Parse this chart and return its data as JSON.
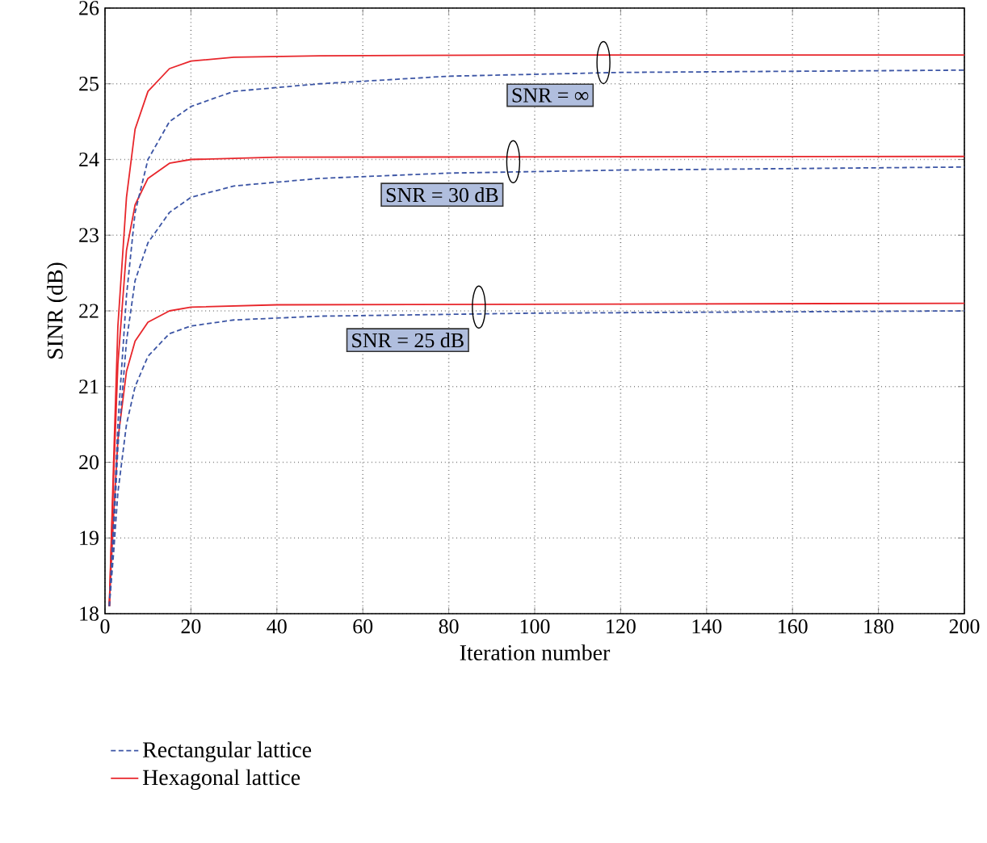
{
  "chart_data": {
    "type": "line",
    "xlabel": "Iteration number",
    "ylabel": "SINR (dB)",
    "xlim": [
      0,
      200
    ],
    "ylim": [
      18,
      26
    ],
    "xticks": [
      0,
      20,
      40,
      60,
      80,
      100,
      120,
      140,
      160,
      180,
      200
    ],
    "yticks": [
      18,
      19,
      20,
      21,
      22,
      23,
      24,
      25,
      26
    ],
    "grid": true,
    "legend": "bottom",
    "marker": "none",
    "series": [
      {
        "name": "Rectangular lattice",
        "color": "#3c55a5",
        "line_style": "dashed",
        "x": [
          1,
          2,
          3,
          5,
          7,
          10,
          15,
          20,
          30,
          50,
          80,
          120,
          200
        ],
        "values": [
          18.1,
          19.2,
          20.5,
          22.2,
          23.3,
          24.0,
          24.5,
          24.7,
          24.9,
          25.0,
          25.1,
          25.15,
          25.18
        ]
      },
      {
        "name": "Hexagonal lattice",
        "color": "#e8262b",
        "line_style": "solid",
        "x": [
          1,
          2,
          3,
          5,
          7,
          10,
          15,
          20,
          30,
          50,
          100,
          200
        ],
        "values": [
          18.1,
          20.0,
          21.8,
          23.5,
          24.4,
          24.9,
          25.2,
          25.3,
          25.35,
          25.37,
          25.38,
          25.38
        ]
      },
      {
        "color": "#3c55a5",
        "line_style": "dashed",
        "x": [
          1,
          2,
          3,
          5,
          7,
          10,
          15,
          20,
          30,
          50,
          80,
          120,
          200
        ],
        "values": [
          18.1,
          19.0,
          20.2,
          21.6,
          22.4,
          22.9,
          23.3,
          23.5,
          23.65,
          23.75,
          23.82,
          23.86,
          23.9
        ]
      },
      {
        "color": "#e8262b",
        "line_style": "solid",
        "x": [
          1,
          2,
          3,
          5,
          7,
          10,
          15,
          20,
          40,
          200
        ],
        "values": [
          18.1,
          19.8,
          21.3,
          22.8,
          23.4,
          23.75,
          23.95,
          24.0,
          24.03,
          24.04
        ]
      },
      {
        "color": "#3c55a5",
        "line_style": "dashed",
        "x": [
          1,
          2,
          3,
          5,
          7,
          10,
          15,
          20,
          30,
          50,
          100,
          200
        ],
        "values": [
          18.1,
          18.8,
          19.6,
          20.5,
          21.0,
          21.4,
          21.7,
          21.8,
          21.88,
          21.93,
          21.97,
          22.0
        ]
      },
      {
        "color": "#e8262b",
        "line_style": "solid",
        "x": [
          1,
          2,
          3,
          5,
          7,
          10,
          15,
          20,
          40,
          200
        ],
        "values": [
          18.1,
          19.3,
          20.3,
          21.2,
          21.6,
          21.85,
          22.0,
          22.05,
          22.08,
          22.1
        ]
      }
    ],
    "annotations": [
      {
        "text": "SNR = ∞",
        "x": 116,
        "y": 25.28
      },
      {
        "text": "SNR = 30 dB",
        "x": 95,
        "y": 23.97
      },
      {
        "text": "SNR = 25 dB",
        "x": 87,
        "y": 22.05
      }
    ]
  }
}
